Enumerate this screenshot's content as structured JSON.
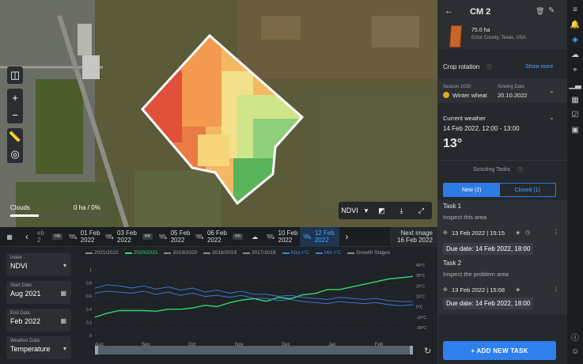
{
  "map": {
    "clouds_label": "Clouds",
    "clouds_value": "0 ha / 0%",
    "clouds_fraction": 0.28,
    "layer": "NDVI",
    "tools": [
      "compare-icon",
      "zoom-in-icon",
      "zoom-out-icon",
      "ruler-icon",
      "locate-icon"
    ]
  },
  "timeline": {
    "items": [
      {
        "type": "calendar-icon"
      },
      {
        "type": "prev-icon"
      },
      {
        "label": "eb\n2",
        "partial": true
      },
      {
        "label": "HR",
        "badge": true
      },
      {
        "label": "01 Feb\n2022",
        "icon": "satellite-icon"
      },
      {
        "label": "03 Feb\n2022",
        "icon": "satellite-icon"
      },
      {
        "label": "HR",
        "badge": true
      },
      {
        "label": "05 Feb\n2022",
        "icon": "satellite-icon"
      },
      {
        "label": "06 Feb\n2022",
        "icon": "satellite-icon"
      },
      {
        "label": "HR",
        "badge": true
      },
      {
        "type": "cloud-icon"
      },
      {
        "label": "10 Feb\n2022",
        "icon": "satellite-icon"
      },
      {
        "label": "12 Feb\n2022",
        "icon": "satellite-icon",
        "active": true
      },
      {
        "type": "next-icon"
      }
    ],
    "next_label": "Next image",
    "next_date": "16 Feb 2022"
  },
  "filters": {
    "index": {
      "label": "Index",
      "value": "NDVI"
    },
    "start": {
      "label": "Start Date",
      "value": "Aug 2021"
    },
    "end": {
      "label": "End Date",
      "value": "Feb 2022"
    },
    "weather": {
      "label": "Weather Data",
      "value": "Temperature"
    }
  },
  "chart_data": {
    "type": "line",
    "legend": [
      {
        "name": "2021/2022",
        "color": "#888888"
      },
      {
        "name": "2020/2021",
        "color": "#2ddc6a"
      },
      {
        "name": "2019/2020",
        "color": "#888888"
      },
      {
        "name": "2018/2019",
        "color": "#888888"
      },
      {
        "name": "2017/2018",
        "color": "#888888"
      },
      {
        "name": "Max t°C",
        "color": "#3d7fe6"
      },
      {
        "name": "Min t°C",
        "color": "#3d7fe6"
      },
      {
        "name": "Growth Stages",
        "color": "#888888"
      }
    ],
    "x_ticks": [
      "Aug",
      "Sep",
      "Oct",
      "Nov",
      "Dec",
      "Jan",
      "Feb"
    ],
    "y_left_ticks": [
      "1",
      "0.8",
      "0.6",
      "0.4",
      "0.2",
      "0"
    ],
    "y_left_lim": [
      0,
      1
    ],
    "y_right_ticks": [
      "40°C",
      "30°C",
      "20°C",
      "10°C",
      "0°C",
      "-10°C",
      "-20°C"
    ],
    "y_right_lim": [
      -20,
      40
    ],
    "series": [
      {
        "name": "2020/2021",
        "color": "#2ddc6a",
        "axis": "left",
        "values": [
          0.28,
          0.34,
          0.38,
          0.38,
          0.38,
          0.37,
          0.4,
          0.4,
          0.42,
          0.46,
          0.44,
          0.5,
          0.54,
          0.56,
          0.52,
          0.58,
          0.56,
          0.62,
          0.64,
          0.7,
          0.7,
          0.74,
          0.78,
          0.82,
          0.86,
          0.88,
          0.9
        ]
      },
      {
        "name": "Max t°C",
        "color": "#3d7fe6",
        "axis": "right",
        "values": [
          18,
          21,
          20,
          18,
          20,
          17,
          19,
          16,
          18,
          14,
          16,
          13,
          15,
          12,
          12,
          10,
          11,
          9,
          8,
          7,
          9,
          8,
          7,
          8,
          6,
          5,
          5
        ]
      },
      {
        "name": "Min t°C",
        "color": "#3d7fe6",
        "axis": "right",
        "values": [
          13,
          15,
          14,
          13,
          15,
          12,
          14,
          11,
          13,
          10,
          11,
          9,
          11,
          8,
          8,
          6,
          7,
          5,
          4,
          3,
          5,
          4,
          3,
          4,
          2,
          1,
          2
        ]
      }
    ],
    "grid": true
  },
  "panel": {
    "title": "CM 2",
    "area": "75.0 ha",
    "location": "Ector County, Texas, USA",
    "crop_rotation": "Crop rotation",
    "show_more": "Show more",
    "season_label": "Season 2020",
    "crop": "Winter wheat",
    "sowing_label": "Sowing Date",
    "sowing_date": "20.10.2022",
    "weather_label": "Current weather",
    "weather_time": "14 Feb 2022, 12:00 - 13:00",
    "temperature": "13°",
    "scouting_title": "Scouting Tasks",
    "tab_new": "New (2)",
    "tab_closed": "Closed (1)",
    "tasks": [
      {
        "title": "Task 1",
        "desc": "Inspect this area",
        "date": "13 Feb 2022 | 15:15",
        "due": "Due date: 14 Feb 2022, 18:00"
      },
      {
        "title": "Task 2",
        "desc": "Inspect the problem area",
        "date": "13 Feb 2022 | 15:08",
        "due": "Due date: 14 Feb 2022, 18:00"
      }
    ],
    "add_task": "+ ADD NEW TASK"
  },
  "rail": [
    "menu-icon",
    "bell-icon",
    "layers-icon",
    "cloud-icon",
    "pin-icon",
    "chart-icon",
    "grid-icon",
    "calendar-check-icon",
    "inbox-icon"
  ]
}
